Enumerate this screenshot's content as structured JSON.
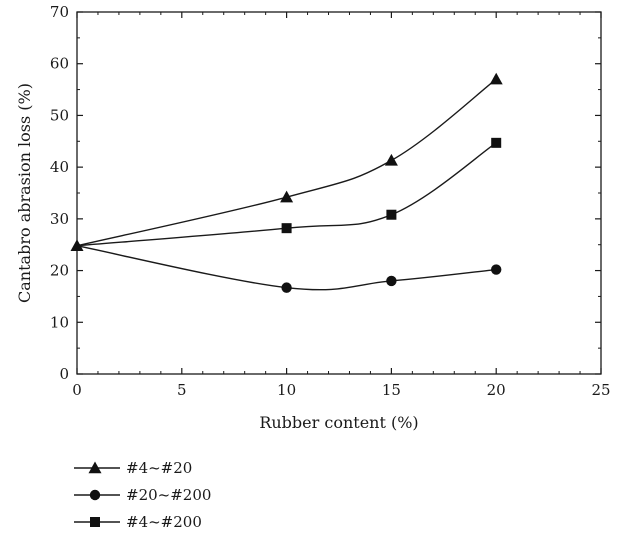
{
  "chart_data": {
    "type": "line",
    "xlabel": "Rubber content (%)",
    "ylabel": "Cantabro abrasion loss (%)",
    "xlim": [
      0,
      25
    ],
    "ylim": [
      0,
      70
    ],
    "xticks": [
      0,
      5,
      10,
      15,
      20,
      25
    ],
    "yticks": [
      0,
      10,
      20,
      30,
      40,
      50,
      60,
      70
    ],
    "grid": false,
    "legend_position": "bottom-left",
    "series": [
      {
        "name": "#4~#20",
        "marker": "triangle",
        "points": [
          [
            0,
            24.8
          ],
          [
            10,
            34.2
          ],
          [
            15,
            41.3
          ],
          [
            20,
            57.0
          ]
        ]
      },
      {
        "name": "#20~#200",
        "marker": "circle",
        "points": [
          [
            0,
            24.8
          ],
          [
            10,
            16.7
          ],
          [
            15,
            18.0
          ],
          [
            20,
            20.2
          ]
        ]
      },
      {
        "name": "#4~#200",
        "marker": "square",
        "points": [
          [
            0,
            24.8
          ],
          [
            10,
            28.2
          ],
          [
            15,
            30.8
          ],
          [
            20,
            44.7
          ]
        ]
      }
    ]
  }
}
